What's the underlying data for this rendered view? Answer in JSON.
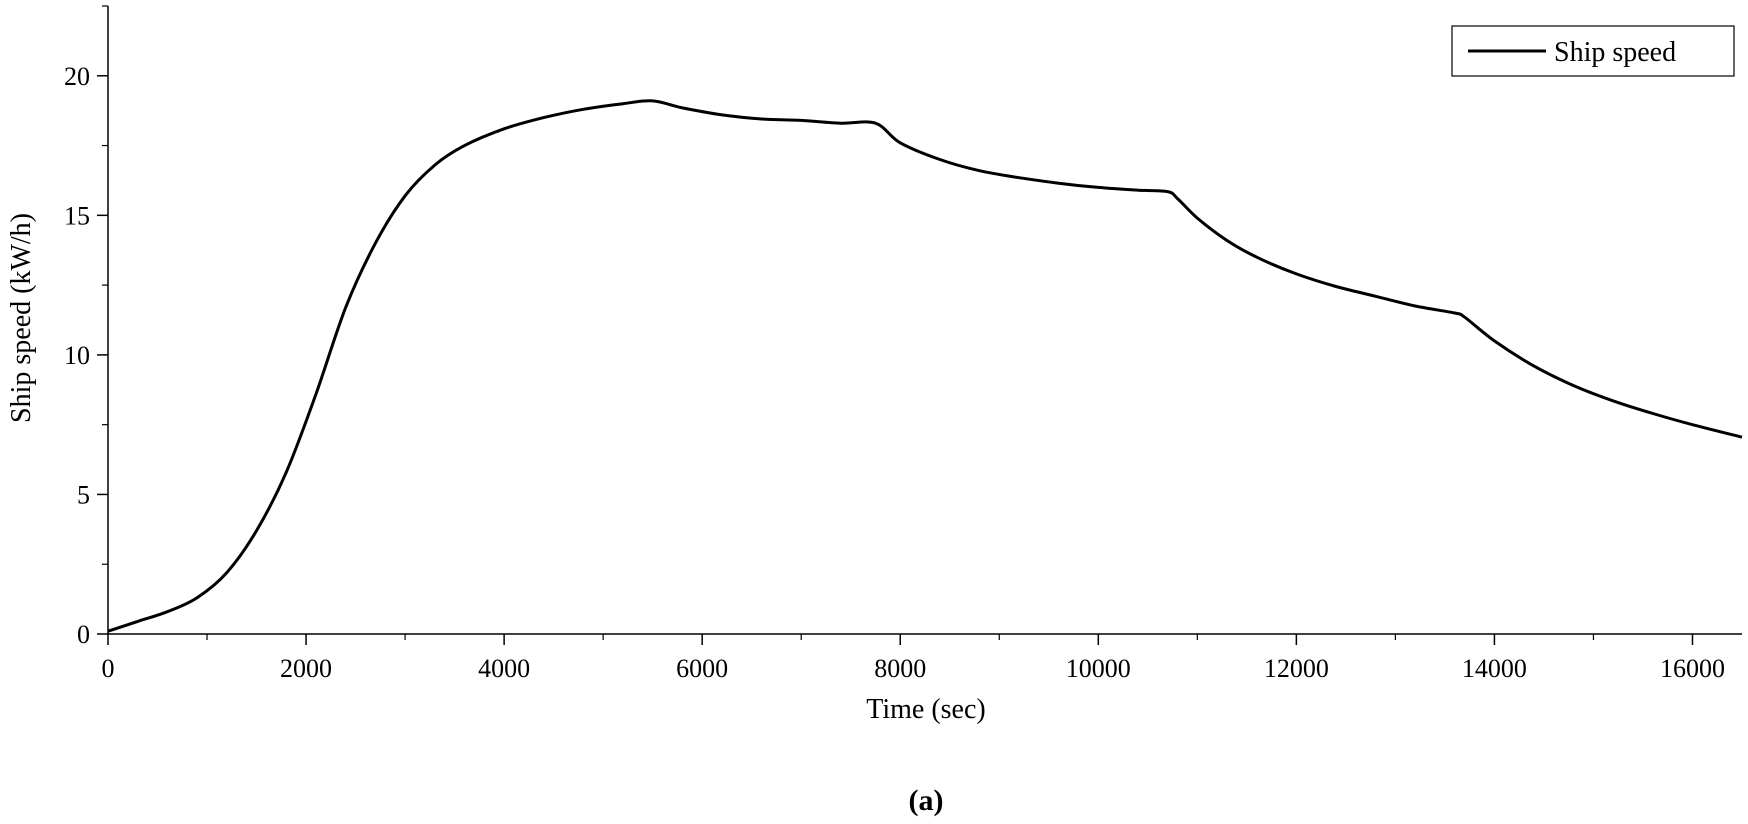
{
  "chart_data": {
    "type": "line",
    "title": "",
    "xlabel": "Time (sec)",
    "ylabel": "Ship speed (kW/h)",
    "xlim": [
      0,
      16500
    ],
    "ylim": [
      0,
      22.5
    ],
    "x_ticks": [
      0,
      2000,
      4000,
      6000,
      8000,
      10000,
      12000,
      14000,
      16000
    ],
    "x_tick_labels": [
      "0",
      "2000",
      "4000",
      "6000",
      "8000",
      "10000",
      "12000",
      "14000",
      "16000"
    ],
    "y_ticks": [
      0,
      5,
      10,
      15,
      20
    ],
    "y_tick_labels": [
      "0",
      "5",
      "10",
      "15",
      "20"
    ],
    "grid": false,
    "legend_position": "top-right",
    "series": [
      {
        "name": "Ship speed",
        "color": "#000000",
        "x": [
          0,
          300,
          600,
          900,
          1200,
          1500,
          1800,
          2100,
          2400,
          2700,
          3000,
          3300,
          3600,
          4000,
          4400,
          4800,
          5200,
          5500,
          5800,
          6200,
          6600,
          7000,
          7400,
          7750,
          8000,
          8400,
          8800,
          9200,
          9600,
          10000,
          10400,
          10700,
          10800,
          11000,
          11300,
          11600,
          12000,
          12400,
          12800,
          13200,
          13600,
          13700,
          14000,
          14400,
          14800,
          15200,
          15600,
          16000,
          16500
        ],
        "y": [
          0.1,
          0.45,
          0.8,
          1.3,
          2.2,
          3.7,
          5.8,
          8.6,
          11.7,
          14.0,
          15.7,
          16.8,
          17.5,
          18.1,
          18.5,
          18.8,
          19.0,
          19.1,
          18.85,
          18.6,
          18.45,
          18.4,
          18.3,
          18.3,
          17.6,
          17.0,
          16.6,
          16.35,
          16.15,
          16.0,
          15.9,
          15.85,
          15.6,
          14.9,
          14.1,
          13.5,
          12.9,
          12.45,
          12.1,
          11.75,
          11.5,
          11.35,
          10.5,
          9.6,
          8.9,
          8.35,
          7.9,
          7.5,
          7.05
        ]
      }
    ]
  },
  "caption": "(a)"
}
